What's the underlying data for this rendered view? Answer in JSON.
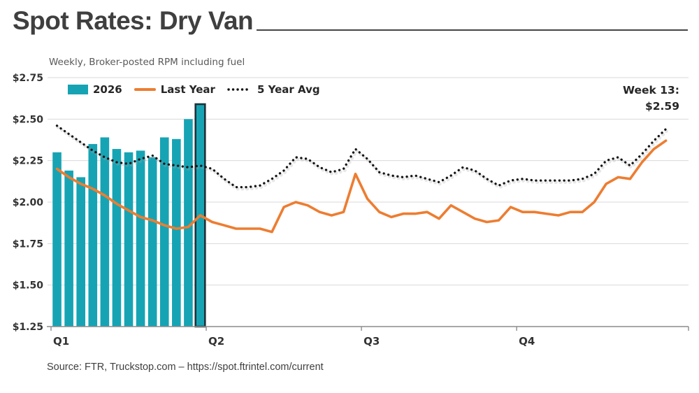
{
  "title": "Spot Rates: Dry Van",
  "subtitle": "Weekly, Broker-posted RPM including fuel",
  "annotation": {
    "line1": "Week 13:",
    "line2": "$2.59"
  },
  "source": "Source: FTR, Truckstop.com – https://spot.ftrintel.com/current",
  "legend": {
    "items": [
      {
        "label": "2026",
        "swatch": "bar"
      },
      {
        "label": "Last Year",
        "swatch": "line"
      },
      {
        "label": "5 Year Avg",
        "swatch": "dots"
      }
    ]
  },
  "colors": {
    "bar_teal": "#16a4b4",
    "bar_highlight_outline": "#1d3239",
    "line_orange": "#ed7d31",
    "line_dotted": "#141414",
    "dotted_halo": "#aaaaaa",
    "gridline": "#d9d9d9",
    "axis": "#8c8c8c"
  },
  "chart_data": {
    "type": "combo (bar + line + dotted line)",
    "title": "Spot Rates: Dry Van",
    "subtitle": "Weekly, Broker-posted RPM including fuel",
    "ylabel": "Broker-posted RPM including fuel ($)",
    "ylim": [
      1.25,
      2.75
    ],
    "grid": "horizontal",
    "legend_position": "top-left inside plot",
    "highlight": {
      "week": 13,
      "label": "Week 13:",
      "value_label": "$2.59",
      "value": 2.59
    },
    "y_ticks": [
      {
        "label": "$2.75",
        "value": 2.75
      },
      {
        "label": "$2.50",
        "value": 2.5
      },
      {
        "label": "$2.25",
        "value": 2.25
      },
      {
        "label": "$2.00",
        "value": 2.0
      },
      {
        "label": "$1.75",
        "value": 1.75
      },
      {
        "label": "$1.50",
        "value": 1.5
      },
      {
        "label": "$1.25",
        "value": 1.25
      }
    ],
    "x_ticks": [
      {
        "label": "Q1",
        "week": 1
      },
      {
        "label": "Q2",
        "week": 14
      },
      {
        "label": "Q3",
        "week": 27
      },
      {
        "label": "Q4",
        "week": 40
      }
    ],
    "x_unit": "week",
    "weeks_total": 52,
    "series": [
      {
        "name": "2026",
        "type": "bar",
        "color": "#16a4b4",
        "weeks": [
          1,
          2,
          3,
          4,
          5,
          6,
          7,
          8,
          9,
          10,
          11,
          12,
          13
        ],
        "values": [
          2.3,
          2.19,
          2.15,
          2.35,
          2.39,
          2.32,
          2.3,
          2.31,
          2.27,
          2.39,
          2.38,
          2.5,
          2.59
        ]
      },
      {
        "name": "Last Year",
        "type": "line",
        "color": "#ed7d31",
        "values": [
          2.2,
          2.15,
          2.11,
          2.08,
          2.04,
          1.99,
          1.95,
          1.91,
          1.89,
          1.86,
          1.84,
          1.85,
          1.92,
          1.88,
          1.86,
          1.84,
          1.84,
          1.84,
          1.82,
          1.97,
          2.0,
          1.98,
          1.94,
          1.92,
          1.94,
          2.17,
          2.02,
          1.94,
          1.91,
          1.93,
          1.93,
          1.94,
          1.9,
          1.98,
          1.94,
          1.9,
          1.88,
          1.89,
          1.97,
          1.94,
          1.94,
          1.93,
          1.92,
          1.94,
          1.94,
          2.0,
          2.11,
          2.15,
          2.14,
          2.24,
          2.32,
          2.37
        ]
      },
      {
        "name": "5 Year Avg",
        "type": "dotted-line",
        "color": "#141414",
        "values": [
          2.46,
          2.41,
          2.36,
          2.31,
          2.27,
          2.24,
          2.23,
          2.26,
          2.28,
          2.23,
          2.22,
          2.21,
          2.22,
          2.2,
          2.14,
          2.09,
          2.09,
          2.1,
          2.14,
          2.19,
          2.27,
          2.26,
          2.21,
          2.18,
          2.2,
          2.32,
          2.26,
          2.18,
          2.16,
          2.15,
          2.16,
          2.14,
          2.12,
          2.16,
          2.21,
          2.19,
          2.14,
          2.1,
          2.13,
          2.14,
          2.13,
          2.13,
          2.13,
          2.13,
          2.14,
          2.17,
          2.25,
          2.27,
          2.22,
          2.29,
          2.37,
          2.44
        ]
      }
    ]
  }
}
